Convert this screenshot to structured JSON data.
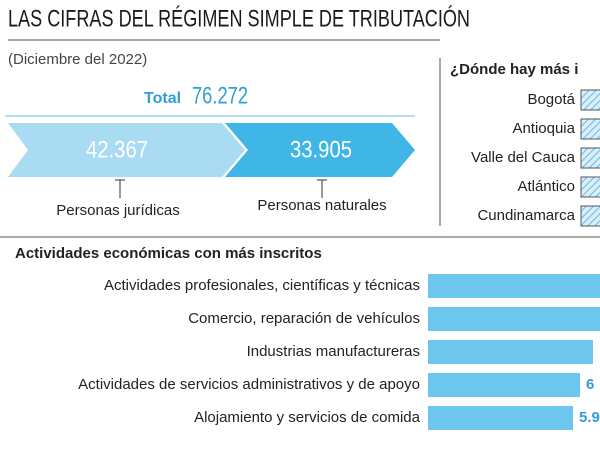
{
  "header": {
    "title": "LAS CIFRAS DEL RÉGIMEN SIMPLE DE TRIBUTACIÓN",
    "subtitle": "(Diciembre del 2022)"
  },
  "total": {
    "label": "Total",
    "value": "76.272"
  },
  "segments": [
    {
      "value": "42.367",
      "label": "Personas jurídicas"
    },
    {
      "value": "33.905",
      "label": "Personas naturales"
    }
  ],
  "regions": {
    "title": "¿Dónde hay más i",
    "items": [
      "Bogotá",
      "Antioquia",
      "Valle del Cauca",
      "Atlántico",
      "Cundinamarca"
    ]
  },
  "activities": {
    "title": "Actividades económicas con más inscritos",
    "items": [
      {
        "name": "Actividades profesionales, científicas y técnicas"
      },
      {
        "name": "Comercio, reparación de vehículos"
      },
      {
        "name": "Industrias manufactureras"
      },
      {
        "name": "Actividades de servicios administrativos y de apoyo",
        "value_text": "6"
      },
      {
        "name": "Alojamiento y servicios de comida",
        "value_text": "5.9"
      }
    ]
  }
}
